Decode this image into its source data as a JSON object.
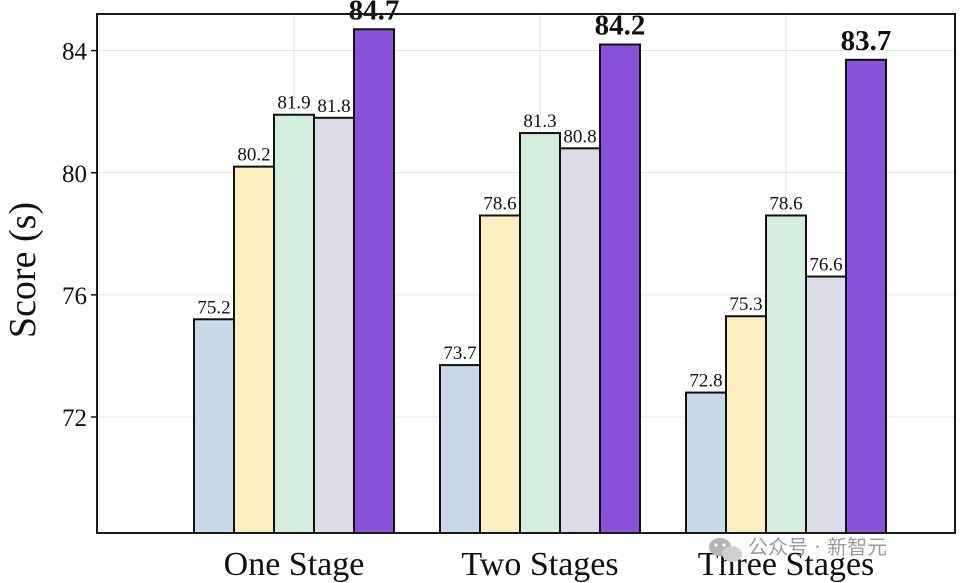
{
  "chart_data": {
    "type": "bar",
    "title": "",
    "xlabel": "",
    "ylabel": "Score (s)",
    "ylim": [
      68.2,
      85.2
    ],
    "yticks": [
      72,
      76,
      80,
      84
    ],
    "grid": true,
    "categories": [
      "One Stage",
      "Two Stages",
      "Three Stages"
    ],
    "series": [
      {
        "values": [
          75.2,
          73.7,
          72.8
        ],
        "color": "#c9d9e9"
      },
      {
        "values": [
          80.2,
          78.6,
          75.3
        ],
        "color": "#fbeec0"
      },
      {
        "values": [
          81.9,
          81.3,
          78.6
        ],
        "color": "#d4eedd"
      },
      {
        "values": [
          81.8,
          80.8,
          76.6
        ],
        "color": "#dcdce8"
      },
      {
        "values": [
          84.7,
          84.2,
          83.7
        ],
        "color": "#8a52d8",
        "highlight": true
      }
    ]
  },
  "watermark": {
    "icon": "wechat-icon",
    "text": "公众号 · 新智元"
  }
}
